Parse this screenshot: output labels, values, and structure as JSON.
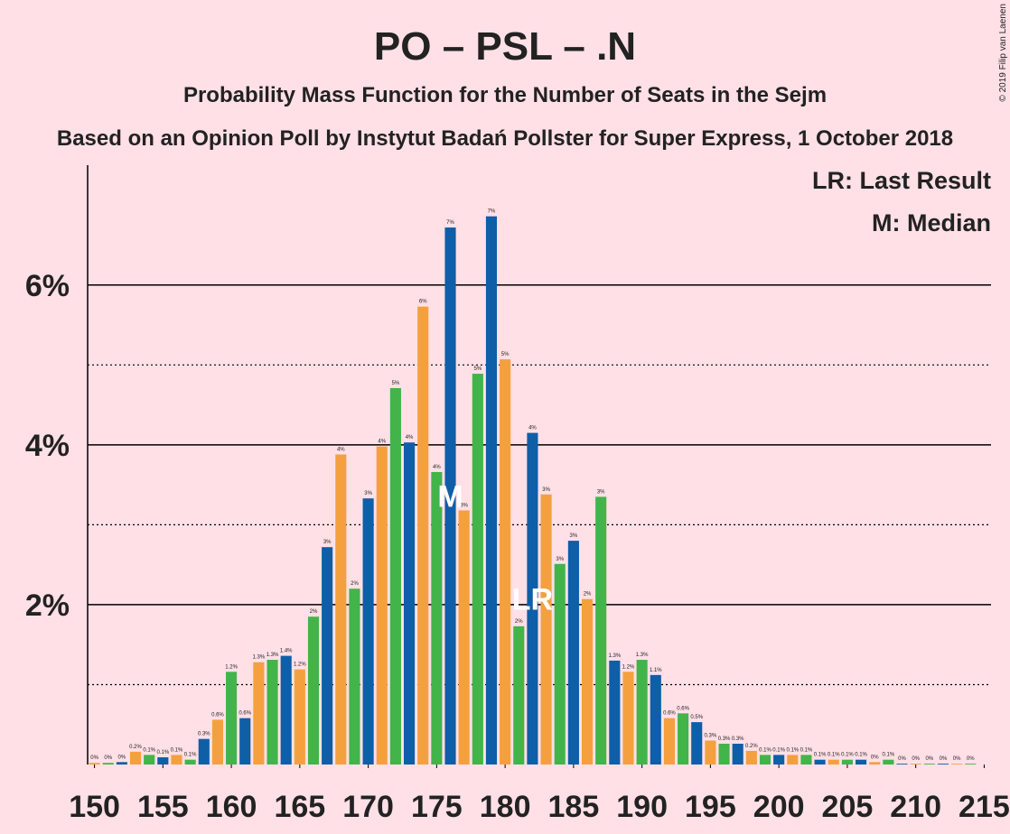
{
  "chart_data": {
    "type": "bar",
    "title": "PO – PSL – .N",
    "subtitle": "Probability Mass Function for the Number of Seats in the Sejm",
    "source_note": "Based on an Opinion Poll by Instytut Badań Pollster for Super Express, 1 October 2018",
    "copyright": "© 2019 Filip van Laenen",
    "x": [
      150,
      151,
      152,
      153,
      154,
      155,
      156,
      157,
      158,
      159,
      160,
      161,
      162,
      163,
      164,
      165,
      166,
      167,
      168,
      169,
      170,
      171,
      172,
      173,
      174,
      175,
      176,
      177,
      178,
      179,
      180,
      181,
      182,
      183,
      184,
      185,
      186,
      187,
      188,
      189,
      190,
      191,
      192,
      193,
      194,
      195,
      196,
      197,
      198,
      199,
      200,
      201,
      202,
      203,
      204,
      205,
      206,
      207,
      208,
      209,
      210,
      211,
      212,
      213,
      214
    ],
    "values": [
      0.02,
      0.02,
      0.03,
      0.16,
      0.12,
      0.09,
      0.12,
      0.06,
      0.32,
      0.56,
      1.16,
      0.58,
      1.28,
      1.31,
      1.36,
      1.19,
      1.85,
      2.72,
      3.88,
      2.2,
      3.33,
      3.98,
      4.71,
      4.03,
      5.73,
      3.66,
      6.72,
      3.18,
      4.89,
      6.86,
      5.07,
      1.73,
      4.15,
      3.38,
      2.51,
      2.8,
      2.07,
      3.35,
      1.3,
      1.16,
      1.31,
      1.12,
      0.58,
      0.64,
      0.53,
      0.3,
      0.26,
      0.26,
      0.17,
      0.12,
      0.12,
      0.12,
      0.12,
      0.06,
      0.06,
      0.06,
      0.06,
      0.03,
      0.06,
      0.01,
      0.01,
      0.01,
      0.01,
      0.01,
      0.01
    ],
    "value_labels": [
      "0%",
      "0%",
      "0%",
      "0.2%",
      "0.1%",
      "0.1%",
      "0.1%",
      "0.1%",
      "0.3%",
      "0.6%",
      "1.2%",
      "0.6%",
      "1.3%",
      "1.3%",
      "1.4%",
      "1.2%",
      "2%",
      "3%",
      "4%",
      "2%",
      "3%",
      "4%",
      "5%",
      "4%",
      "6%",
      "4%",
      "7%",
      "3%",
      "5%",
      "7%",
      "5%",
      "2%",
      "4%",
      "3%",
      "3%",
      "3%",
      "2%",
      "3%",
      "1.3%",
      "1.2%",
      "1.3%",
      "1.1%",
      "0.6%",
      "0.6%",
      "0.5%",
      "0.3%",
      "0.3%",
      "0.3%",
      "0.2%",
      "0.1%",
      "0.1%",
      "0.1%",
      "0.1%",
      "0.1%",
      "0.1%",
      "0.1%",
      "0.1%",
      "0%",
      "0.1%",
      "0%",
      "0%",
      "0%",
      "0%",
      "0%",
      "0%"
    ],
    "colors": [
      "#F5A03F",
      "#42B44A",
      "#0E5EA8"
    ],
    "xlim": [
      149.5,
      215.5
    ],
    "xticks": [
      150,
      155,
      160,
      165,
      170,
      175,
      180,
      185,
      190,
      195,
      200,
      205,
      210,
      215
    ],
    "ylim": [
      0,
      7.5
    ],
    "yticks": [
      {
        "value": 2,
        "label": "2%"
      },
      {
        "value": 4,
        "label": "4%"
      },
      {
        "value": 6,
        "label": "6%"
      }
    ],
    "minor_yticks": [
      1,
      3,
      5
    ],
    "grid": true,
    "annotations": [
      {
        "label": "M",
        "x": 176
      },
      {
        "label": "LR",
        "x": 182
      }
    ],
    "legend": [
      "LR: Last Result",
      "M: Median"
    ]
  }
}
